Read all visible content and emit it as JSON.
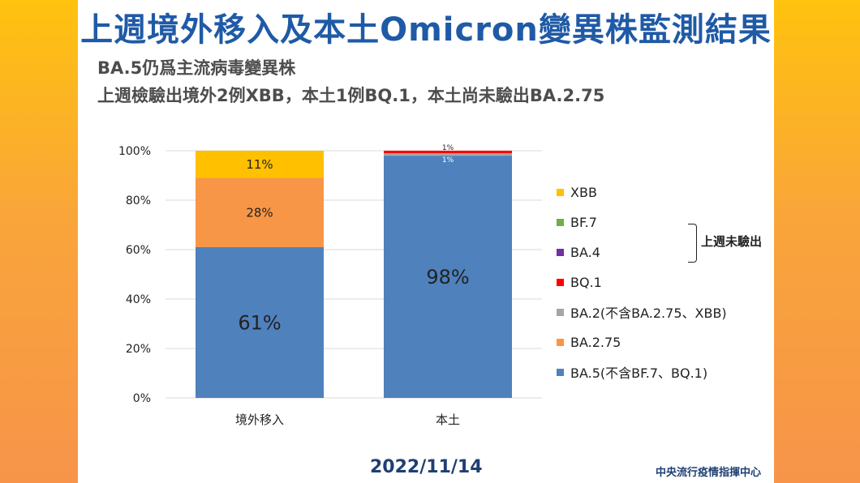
{
  "title": "上週境外移入及本土Omicron變異株監測結果",
  "subtitles": [
    "BA.5仍爲主流病毒變異株",
    "上週檢驗出境外2例XBB，本土1例BQ.1，本土尚未驗出BA.2.75"
  ],
  "date": "2022/11/14",
  "source": "中央流行疫情指揮中心",
  "legend_note": "上週未驗出",
  "chart_data": {
    "type": "bar",
    "stacked": true,
    "categories": [
      "境外移入",
      "本土"
    ],
    "ylim": [
      0,
      100
    ],
    "yticks": [
      "0%",
      "20%",
      "40%",
      "60%",
      "80%",
      "100%"
    ],
    "grid": true,
    "legend_position": "right",
    "series": [
      {
        "name": "BA.5(不含BF.7、BQ.1)",
        "color": "#4f81bd",
        "values": [
          61,
          98
        ],
        "labels": [
          "61%",
          "98%"
        ]
      },
      {
        "name": "BA.2.75",
        "color": "#f79646",
        "values": [
          28,
          0
        ],
        "labels": [
          "28%",
          ""
        ]
      },
      {
        "name": "BA.2(不含BA.2.75、XBB)",
        "color": "#a5a5a5",
        "values": [
          0,
          1
        ],
        "labels": [
          "",
          "1%"
        ]
      },
      {
        "name": "BQ.1",
        "color": "#ff0000",
        "values": [
          0,
          1
        ],
        "labels": [
          "",
          "1%"
        ]
      },
      {
        "name": "BA.4",
        "color": "#7030a0",
        "values": [
          0,
          0
        ],
        "labels": [
          "",
          ""
        ]
      },
      {
        "name": "BF.7",
        "color": "#70ad47",
        "values": [
          0,
          0
        ],
        "labels": [
          "",
          ""
        ]
      },
      {
        "name": "XBB",
        "color": "#ffc000",
        "values": [
          11,
          0
        ],
        "labels": [
          "11%",
          ""
        ]
      }
    ]
  }
}
